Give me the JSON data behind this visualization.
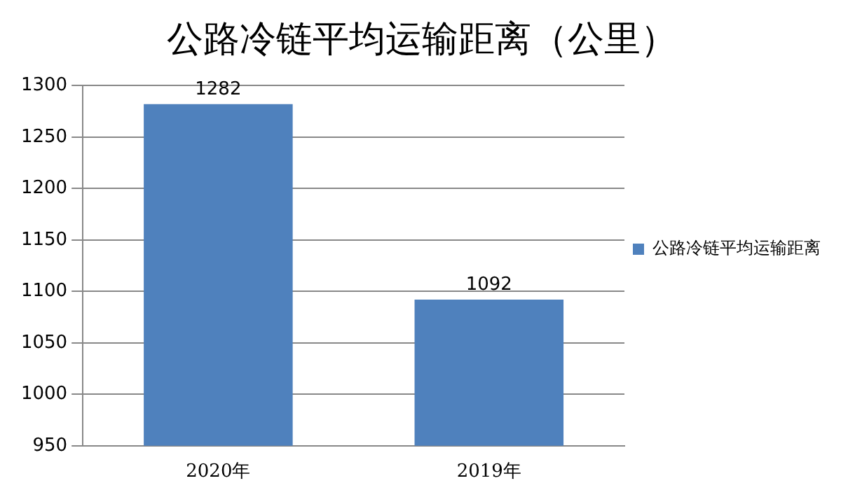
{
  "chart_data": {
    "type": "bar",
    "title": "公路冷链平均运输距离（公里）",
    "categories": [
      "2020年",
      "2019年"
    ],
    "series": [
      {
        "name": "公路冷链平均运输距离",
        "color": "#4f81bd",
        "values": [
          1282,
          1092
        ]
      }
    ],
    "ylim": [
      950,
      1300
    ],
    "yticks": [
      950,
      1000,
      1050,
      1100,
      1150,
      1200,
      1250,
      1300
    ],
    "grid": "y",
    "legend": "right",
    "data_labels": true
  }
}
